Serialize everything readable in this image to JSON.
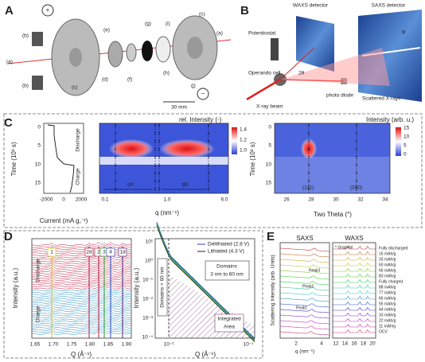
{
  "panels": {
    "A": {
      "label": "A",
      "parts": [
        "(b)",
        "(a)",
        "(b)",
        "(c)",
        "(d)",
        "(e)",
        "(f)",
        "(g)",
        "(h)",
        "(i)",
        "(j)",
        "(c)",
        "(a)"
      ],
      "plus": "+",
      "minus": "−",
      "scale": "30 mm"
    },
    "B": {
      "label": "B",
      "waxs": "WAXS detector",
      "saxs": "SAXS detector",
      "potentiostat": "Potentiostat",
      "cell": "Operando cell",
      "beam": "X-ray beam",
      "diode": "photo diode",
      "scattered": "Scattered X-rays",
      "angle": "2θ",
      "phi": "φ"
    },
    "C": {
      "label": "C",
      "current": {
        "ylabel": "Time (10³ s)",
        "yticks": [
          "0",
          "5",
          "10",
          "15"
        ],
        "xlabel": "Current (mA g꜀⁻¹)",
        "xticks": [
          "-2000",
          "0",
          "2000"
        ],
        "discharge": "Discharge",
        "charge": "Charge"
      },
      "saxs": {
        "colorbar_label": "rel. Intensity (-)",
        "cticks": [
          "1.4",
          "1.2",
          "1.0"
        ],
        "xlabel": "q (nm⁻¹)",
        "xticks": [
          "0.1",
          "1.0",
          "6.0"
        ],
        "qa": "qA",
        "qb": "qB"
      },
      "waxs": {
        "ylabel": "Time (10³ s)",
        "yticks": [
          "0",
          "5",
          "10",
          "15"
        ],
        "colorbar_label": "Intensity (arb. u.)",
        "cticks": [
          "15",
          "10",
          "5",
          "0"
        ],
        "xlabel": "Two Theta (°)",
        "xticks": [
          "26",
          "28",
          "30",
          "32",
          "34"
        ],
        "peaks": [
          "(111)",
          "(200)"
        ]
      }
    },
    "D": {
      "label": "D",
      "left": {
        "ylabel": "Intensity (a.u.)",
        "xlabel": "Q (Å⁻¹)",
        "xticks": [
          "1.65",
          "1.70",
          "1.75",
          "1.80",
          "1.85",
          "1.90"
        ],
        "markers": [
          "1",
          "2d",
          "2",
          "3",
          "4",
          "1d"
        ],
        "discharge": "Discharge",
        "charge": "Charge"
      },
      "right": {
        "ylabel": "Intensity (a.u.)",
        "xlabel": "Q (Å⁻¹)",
        "yticks": [
          "10¹",
          "10⁰",
          "10⁻¹",
          "10⁻²",
          "10⁻³",
          "10⁻⁴"
        ],
        "xticks": [
          "10⁻²",
          "10⁻¹"
        ],
        "legend": [
          "Delithiated (2.8 V)",
          "Lithiated (4.3 V)"
        ],
        "domains_small": "Domains",
        "domains_range": "3 nm to 60 nm",
        "domains_large": "Domains > 60 nm",
        "integrated": [
          "Integrated",
          "Area"
        ]
      }
    },
    "E": {
      "label": "E",
      "saxs": "SAXS",
      "waxs": "WAXS",
      "ylabel": "Scattering Intensity (arb. Units)",
      "saxs_xlabel": "q (nm⁻¹)",
      "saxs_xticks": [
        "2",
        "4"
      ],
      "waxs_xticks": [
        "12",
        "14",
        "16",
        "18",
        "20"
      ],
      "peaks": [
        "Peak3",
        "Peak2",
        "Peak1"
      ],
      "graphite": "* Graphite",
      "legend": [
        "Fully discharged",
        "16 mAh/g",
        "33 mAh/g",
        "50 mAh/g",
        "66 mAh/g",
        "83 mAh/g",
        "Fully charged",
        "88 mAh/g",
        "77 mAh/g",
        "66 mAh/g",
        "55 mAh/g",
        "44 mAh/g",
        "33 mAh/g",
        "22 mAh/g",
        "11 mAh/g",
        "OCV"
      ]
    }
  }
}
